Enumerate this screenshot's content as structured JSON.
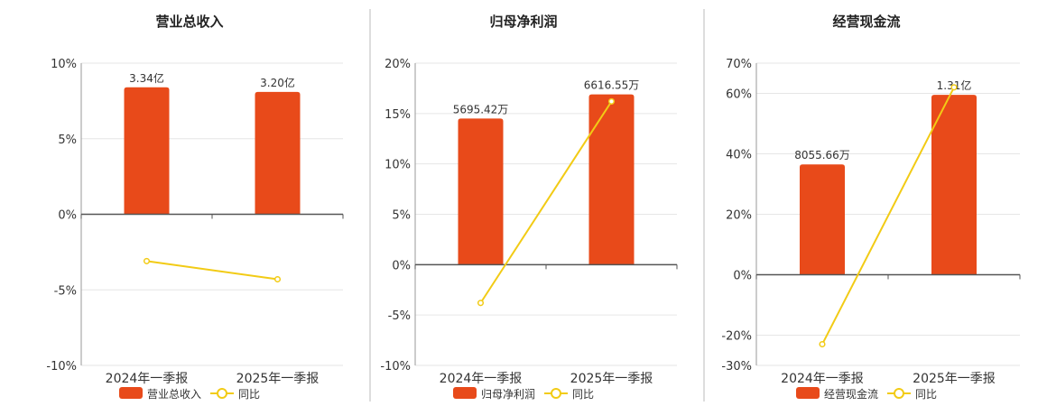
{
  "colors": {
    "bar": "#E84A1A",
    "line": "#F2CB15",
    "axis": "#555555",
    "grid": "#E6E6E6",
    "divider": "#BBBBBB",
    "text": "#333333"
  },
  "chart_data": [
    {
      "type": "bar",
      "title": "营业总收入",
      "categories": [
        "2024年一季报",
        "2025年一季报"
      ],
      "series": [
        {
          "name": "营业总收入",
          "type": "bar",
          "value_labels": [
            "3.34亿",
            "3.20亿"
          ],
          "values": [
            8.4,
            8.1
          ]
        },
        {
          "name": "同比",
          "type": "line",
          "values": [
            -3.1,
            -4.3
          ]
        }
      ],
      "y_ticks": [
        10,
        5,
        0,
        -5,
        -10
      ],
      "y_tick_labels": [
        "10%",
        "5%",
        "0%",
        "-5%",
        "-10%"
      ],
      "ylim": [
        -10,
        10
      ],
      "legend": {
        "placement": "bottom",
        "bar": "营业总收入",
        "line": "同比"
      }
    },
    {
      "type": "bar",
      "title": "归母净利润",
      "categories": [
        "2024年一季报",
        "2025年一季报"
      ],
      "series": [
        {
          "name": "归母净利润",
          "type": "bar",
          "value_labels": [
            "5695.42万",
            "6616.55万"
          ],
          "values": [
            14.5,
            16.9
          ]
        },
        {
          "name": "同比",
          "type": "line",
          "values": [
            -3.8,
            16.2
          ]
        }
      ],
      "y_ticks": [
        20,
        15,
        10,
        5,
        0,
        -5,
        -10
      ],
      "y_tick_labels": [
        "20%",
        "15%",
        "10%",
        "5%",
        "0%",
        "-5%",
        "-10%"
      ],
      "ylim": [
        -10,
        20
      ],
      "legend": {
        "placement": "bottom",
        "bar": "归母净利润",
        "line": "同比"
      }
    },
    {
      "type": "bar",
      "title": "经营现金流",
      "categories": [
        "2024年一季报",
        "2025年一季报"
      ],
      "series": [
        {
          "name": "经营现金流",
          "type": "bar",
          "value_labels": [
            "8055.66万",
            "1.31亿"
          ],
          "values": [
            36.5,
            59.5
          ]
        },
        {
          "name": "同比",
          "type": "line",
          "values": [
            -23,
            62
          ]
        }
      ],
      "y_ticks": [
        70,
        60,
        40,
        20,
        0,
        -20,
        -30
      ],
      "y_tick_labels": [
        "70%",
        "60%",
        "40%",
        "20%",
        "0%",
        "-20%",
        "-30%"
      ],
      "ylim": [
        -30,
        70
      ],
      "legend": {
        "placement": "bottom",
        "bar": "经营现金流",
        "line": "同比"
      }
    }
  ]
}
